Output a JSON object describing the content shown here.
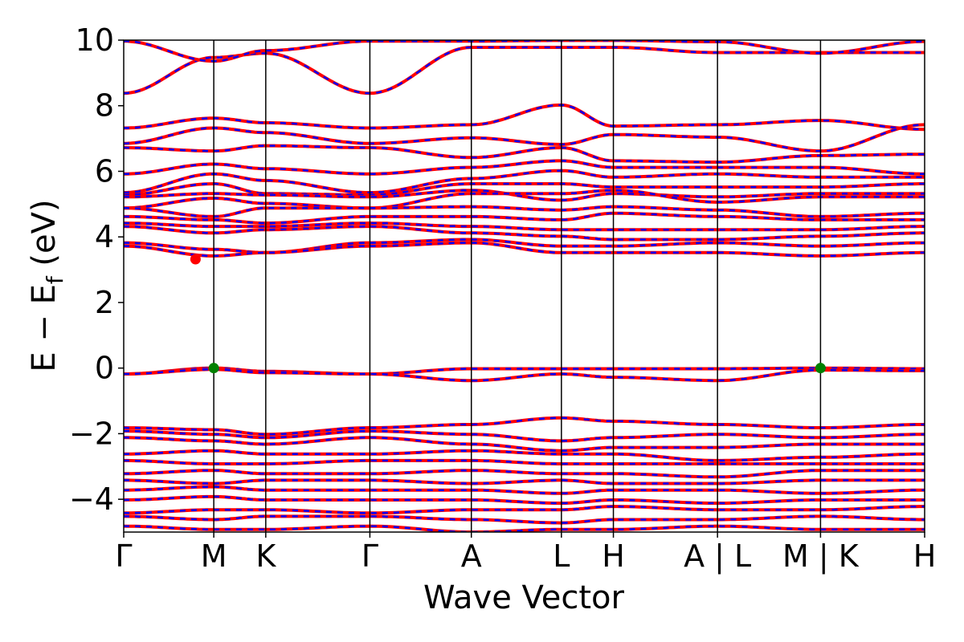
{
  "chart_data": {
    "type": "line",
    "title": "",
    "xlabel": "Wave Vector",
    "ylabel": "E − E",
    "ylabel_sub": "f",
    "ylabel_unit": " (eV)",
    "ylim": [
      -5,
      10
    ],
    "yticks": [
      10,
      8,
      6,
      4,
      2,
      0,
      -2,
      -4
    ],
    "ytick_labels": [
      "10",
      "8",
      "6",
      "4",
      "2",
      "0",
      "−2",
      "−4"
    ],
    "kpath_labels": [
      "Γ",
      "M",
      "K",
      "Γ",
      "A",
      "L",
      "H",
      "A | L",
      "M | K",
      "H"
    ],
    "kpath_positions": [
      0,
      0.577,
      0.91,
      1.577,
      2.227,
      2.804,
      3.137,
      3.804,
      4.464,
      5.131
    ],
    "grid": false,
    "line_colors": {
      "spin_up": "#ff0000",
      "spin_down": "#0000ff"
    },
    "band_style": "red solid over blue dashed (degenerate spin bands)",
    "vbm": {
      "x": 0.577,
      "y": 0.0,
      "color": "#008000"
    },
    "vbm2": {
      "x": 4.464,
      "y": 0.0,
      "color": "#008000"
    },
    "cbm": {
      "x": 0.46,
      "y": 3.32,
      "color": "#ff0000"
    },
    "bands": [
      [
        8.38,
        9.47,
        9.6,
        8.38,
        9.78,
        9.78,
        9.78,
        9.62,
        9.62,
        9.62
      ],
      [
        9.97,
        9.36,
        9.68,
        9.97,
        9.97,
        9.99,
        9.99,
        9.95,
        9.6,
        9.96
      ],
      [
        7.32,
        7.62,
        7.48,
        7.32,
        7.42,
        8.02,
        7.38,
        7.42,
        7.55,
        7.28
      ],
      [
        6.85,
        7.32,
        7.18,
        6.85,
        7.02,
        6.82,
        7.12,
        7.04,
        6.62,
        7.42
      ],
      [
        6.72,
        6.62,
        6.78,
        6.72,
        6.42,
        6.72,
        6.32,
        6.28,
        6.48,
        6.52
      ],
      [
        5.92,
        6.22,
        6.08,
        5.92,
        6.12,
        6.32,
        6.12,
        6.12,
        6.12,
        5.92
      ],
      [
        5.35,
        5.92,
        5.72,
        5.35,
        5.78,
        6.02,
        5.82,
        5.92,
        5.82,
        5.82
      ],
      [
        5.28,
        5.62,
        5.32,
        5.28,
        5.62,
        5.62,
        5.52,
        5.52,
        5.52,
        5.62
      ],
      [
        5.22,
        5.32,
        5.28,
        5.22,
        5.42,
        5.12,
        5.32,
        5.22,
        5.32,
        5.32
      ],
      [
        4.88,
        5.18,
        5.02,
        4.88,
        5.32,
        5.32,
        5.42,
        5.06,
        5.22,
        5.22
      ],
      [
        4.88,
        4.62,
        4.88,
        4.88,
        4.92,
        4.82,
        4.92,
        4.82,
        4.62,
        4.72
      ],
      [
        4.62,
        4.52,
        4.42,
        4.62,
        4.62,
        4.52,
        4.72,
        4.62,
        4.52,
        4.52
      ],
      [
        4.42,
        4.32,
        4.32,
        4.42,
        4.32,
        4.22,
        4.22,
        4.22,
        4.22,
        4.32
      ],
      [
        4.32,
        4.12,
        4.22,
        4.32,
        4.12,
        4.02,
        3.92,
        3.92,
        4.02,
        4.12
      ],
      [
        3.82,
        3.62,
        3.52,
        3.82,
        3.92,
        3.72,
        3.72,
        3.82,
        3.72,
        3.82
      ],
      [
        3.72,
        3.42,
        3.52,
        3.72,
        3.82,
        3.52,
        3.52,
        3.52,
        3.42,
        3.52
      ],
      [
        -0.18,
        0.0,
        -0.1,
        -0.18,
        -0.02,
        -0.02,
        -0.02,
        -0.02,
        0.0,
        -0.02
      ],
      [
        -0.18,
        -0.04,
        -0.14,
        -0.18,
        -0.38,
        -0.18,
        -0.28,
        -0.38,
        -0.06,
        -0.08
      ],
      [
        -1.82,
        -1.88,
        -2.02,
        -1.82,
        -1.72,
        -1.52,
        -1.62,
        -1.72,
        -1.82,
        -1.72
      ],
      [
        -1.92,
        -2.02,
        -2.12,
        -1.92,
        -2.02,
        -2.22,
        -2.12,
        -2.02,
        -2.12,
        -2.02
      ],
      [
        -2.12,
        -2.22,
        -2.32,
        -2.12,
        -2.32,
        -2.52,
        -2.42,
        -2.42,
        -2.32,
        -2.32
      ],
      [
        -2.62,
        -2.52,
        -2.62,
        -2.62,
        -2.52,
        -2.62,
        -2.62,
        -2.82,
        -2.72,
        -2.62
      ],
      [
        -2.82,
        -2.92,
        -2.92,
        -2.82,
        -2.82,
        -2.92,
        -2.92,
        -2.92,
        -2.92,
        -2.92
      ],
      [
        -3.22,
        -3.12,
        -3.22,
        -3.22,
        -3.12,
        -3.22,
        -3.22,
        -3.32,
        -3.12,
        -3.12
      ],
      [
        -3.42,
        -3.52,
        -3.42,
        -3.42,
        -3.52,
        -3.42,
        -3.52,
        -3.52,
        -3.42,
        -3.42
      ],
      [
        -3.72,
        -3.62,
        -3.72,
        -3.72,
        -3.72,
        -3.82,
        -3.72,
        -3.72,
        -3.82,
        -3.72
      ],
      [
        -4.02,
        -3.92,
        -4.02,
        -4.02,
        -4.02,
        -4.12,
        -4.02,
        -4.12,
        -4.02,
        -4.02
      ],
      [
        -4.42,
        -4.32,
        -4.32,
        -4.42,
        -4.32,
        -4.32,
        -4.22,
        -4.32,
        -4.32,
        -4.22
      ],
      [
        -4.52,
        -4.62,
        -4.52,
        -4.52,
        -4.62,
        -4.72,
        -4.62,
        -4.62,
        -4.52,
        -4.62
      ],
      [
        -4.82,
        -4.92,
        -4.92,
        -4.82,
        -5.0,
        -4.92,
        -4.92,
        -4.82,
        -4.92,
        -4.92
      ]
    ]
  }
}
